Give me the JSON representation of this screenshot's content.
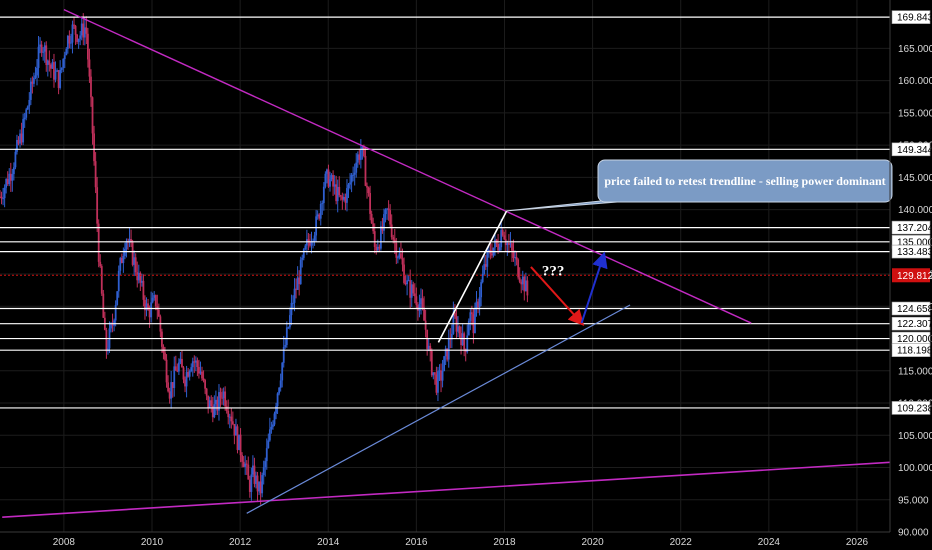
{
  "chart_data": {
    "type": "line",
    "x_axis": {
      "range": [
        2006.55,
        2026.75
      ],
      "ticks": [
        "2008",
        "2010",
        "2012",
        "2014",
        "2016",
        "2018",
        "2020",
        "2022",
        "2024",
        "2026"
      ]
    },
    "y_axis": {
      "range": [
        90,
        172.5
      ],
      "side": "right",
      "ticks": [
        "90.000",
        "95.000",
        "100.000",
        "105.000",
        "110.000",
        "115.000",
        "120.000",
        "125.000",
        "130.000",
        "135.000",
        "140.000",
        "145.000",
        "150.000",
        "155.000",
        "160.000",
        "165.000"
      ]
    },
    "grid": true,
    "colors": {
      "background": "#000000",
      "grid": "#1c1c1c",
      "up_candle": "#2f5fd0",
      "down_candle": "#c0305a",
      "horizontal_levels": "#ffffff",
      "current_price": "#d01010",
      "upper_trendline": "#c22ac2",
      "lower_trendline": "#6a8ad8",
      "long_trendline": "#c22ac2",
      "red_arrow": "#e01818",
      "blue_arrow": "#2030d0",
      "callout_fill": "#7b9bc5"
    },
    "horizontal_levels": [
      {
        "value": 169.843,
        "label": "169.843"
      },
      {
        "value": 149.344,
        "label": "149.344"
      },
      {
        "value": 137.204,
        "label": "137.204"
      },
      {
        "value": 135.0,
        "label": "135.000"
      },
      {
        "value": 133.483,
        "label": "133.483"
      },
      {
        "value": 124.658,
        "label": "124.658"
      },
      {
        "value": 122.307,
        "label": "122.307"
      },
      {
        "value": 120.0,
        "label": "120.000"
      },
      {
        "value": 118.198,
        "label": "118.198"
      },
      {
        "value": 109.238,
        "label": "109.238"
      }
    ],
    "current_price": {
      "value": 129.812,
      "label": "129.812"
    },
    "trendlines": [
      {
        "name": "upper",
        "from": [
          2008.0,
          171.0
        ],
        "to": [
          2023.6,
          122.4
        ]
      },
      {
        "name": "long_support",
        "from": [
          2006.6,
          92.3
        ],
        "to": [
          2026.75,
          100.8
        ]
      },
      {
        "name": "lower_support",
        "from": [
          2012.15,
          92.9
        ],
        "to": [
          2020.85,
          125.2
        ]
      },
      {
        "name": "impulse",
        "from": [
          2016.5,
          119.4
        ],
        "to": [
          2018.05,
          139.8
        ]
      }
    ],
    "arrows": [
      {
        "name": "projected_drop",
        "from": [
          2018.6,
          131.1
        ],
        "to": [
          2019.75,
          122.4
        ]
      },
      {
        "name": "projected_bounce",
        "from": [
          2019.75,
          122.4
        ],
        "to": [
          2020.25,
          132.9
        ]
      }
    ],
    "question_mark": {
      "text": "???",
      "at": [
        2018.85,
        129.8
      ]
    },
    "callout": {
      "text": "price failed to retest trendline - selling power dominant",
      "pointer": [
        2018.05,
        139.8
      ]
    },
    "series": [
      {
        "x": [
          2006.55,
          2006.8,
          2007.05,
          2007.3,
          2007.5,
          2007.7,
          2007.9,
          2008.05,
          2008.2,
          2008.35,
          2008.5,
          2008.65,
          2008.8,
          2008.95,
          2009.1,
          2009.25,
          2009.4,
          2009.55,
          2009.75,
          2009.9,
          2010.1,
          2010.25,
          2010.4,
          2010.6,
          2010.75,
          2010.9,
          2011.1,
          2011.25,
          2011.45,
          2011.6,
          2011.8,
          2011.95,
          2012.1,
          2012.2,
          2012.3,
          2012.45,
          2012.6,
          2012.75,
          2012.9,
          2013.05,
          2013.2,
          2013.35,
          2013.5,
          2013.6,
          2013.75,
          2013.9,
          2014.0,
          2014.15,
          2014.3,
          2014.45,
          2014.6,
          2014.75,
          2014.85,
          2014.95,
          2015.05,
          2015.2,
          2015.35,
          2015.5,
          2015.65,
          2015.8,
          2015.95,
          2016.1,
          2016.2,
          2016.3,
          2016.45,
          2016.55,
          2016.7,
          2016.85,
          2017.0,
          2017.1,
          2017.2,
          2017.3,
          2017.4,
          2017.55,
          2017.7,
          2017.85,
          2017.95,
          2018.05,
          2018.15,
          2018.3,
          2018.45,
          2018.55
        ],
        "y": [
          142.0,
          146.0,
          152.0,
          160.0,
          166.0,
          162.0,
          160.0,
          166.0,
          168.0,
          167.0,
          168.5,
          152.0,
          132.0,
          118.0,
          122.0,
          130.0,
          136.0,
          133.0,
          128.0,
          124.0,
          126.0,
          118.0,
          112.0,
          116.0,
          114.0,
          117.0,
          115.0,
          110.0,
          109.0,
          112.0,
          108.0,
          104.0,
          101.0,
          97.0,
          99.0,
          96.0,
          102.0,
          108.0,
          114.0,
          120.0,
          126.0,
          130.0,
          134.0,
          136.0,
          138.0,
          144.0,
          145.0,
          143.0,
          141.0,
          143.0,
          147.0,
          149.5,
          145.0,
          140.0,
          134.0,
          136.0,
          140.0,
          135.0,
          132.0,
          128.0,
          127.0,
          125.0,
          122.0,
          117.0,
          113.0,
          114.0,
          118.0,
          123.0,
          121.0,
          118.0,
          124.0,
          122.0,
          126.0,
          131.0,
          134.0,
          134.5,
          137.5,
          135.0,
          133.5,
          131.0,
          128.5,
          126.0
        ]
      }
    ]
  }
}
